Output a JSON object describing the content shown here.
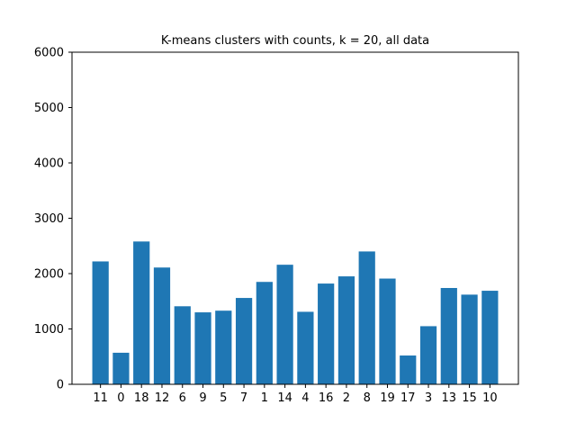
{
  "chart_data": {
    "type": "bar",
    "title": "K-means clusters with counts, k = 20, all data",
    "xlabel": "",
    "ylabel": "",
    "categories": [
      "11",
      "0",
      "18",
      "12",
      "6",
      "9",
      "5",
      "7",
      "1",
      "14",
      "4",
      "16",
      "2",
      "8",
      "19",
      "17",
      "3",
      "13",
      "15",
      "10"
    ],
    "values": [
      2220,
      570,
      2580,
      2110,
      1410,
      1300,
      1330,
      1560,
      1850,
      2160,
      1310,
      1820,
      1950,
      2400,
      1910,
      520,
      1050,
      1740,
      1620,
      1690
    ],
    "ylim": [
      0,
      6000
    ],
    "yticks": [
      "0",
      "1000",
      "2000",
      "3000",
      "4000",
      "5000",
      "6000"
    ],
    "bar_color": "#1f77b4",
    "grid": false,
    "legend": "none"
  }
}
